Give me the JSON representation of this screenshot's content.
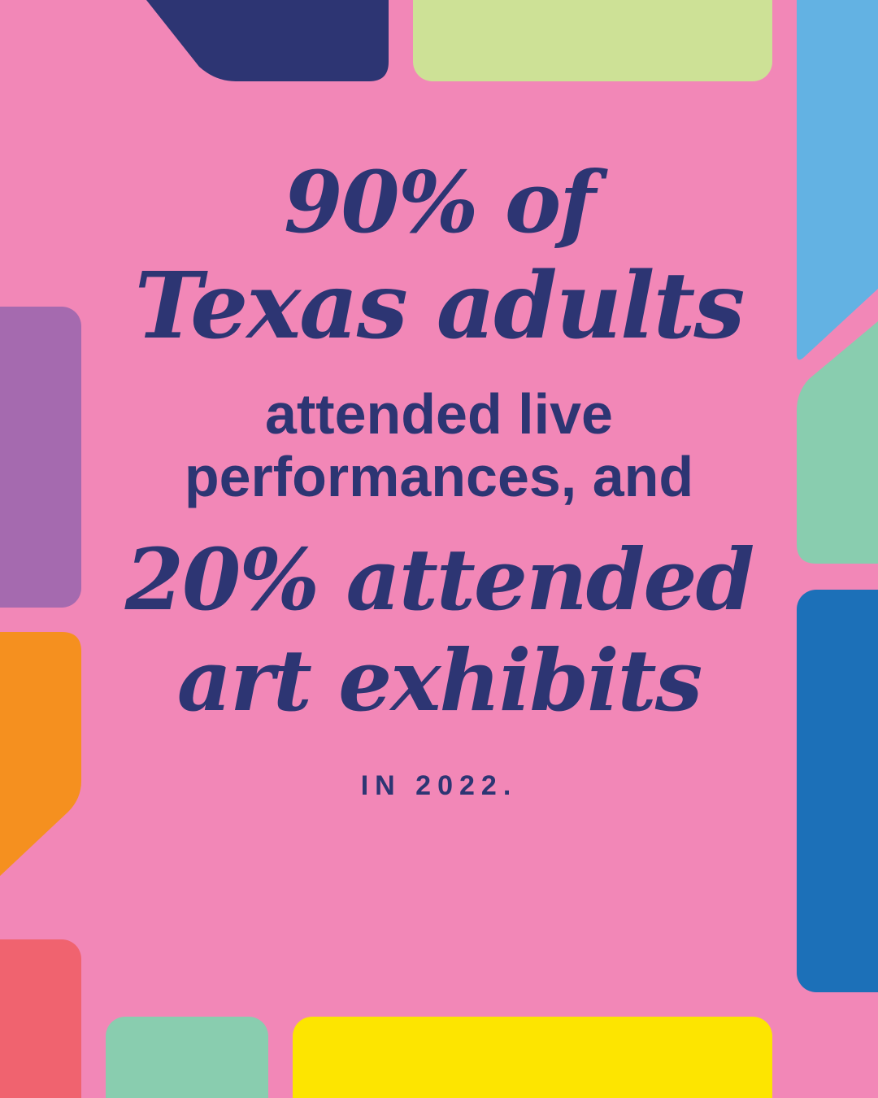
{
  "headline": {
    "line1": "90% of",
    "line2": "Texas adults",
    "line3": "attended live",
    "line4": "performances, and",
    "line5": "20% attended",
    "line6": "art exhibits",
    "footer": "IN 2022."
  },
  "colors": {
    "background": "#f287b7",
    "text": "#2d3573",
    "navy": "#2d3573",
    "lime": "#cde196",
    "sky_blue": "#63b2e3",
    "mint": "#89cdaf",
    "purple": "#a56aaf",
    "orange": "#f5901f",
    "coral": "#f0636f",
    "royal_blue": "#1c70b8",
    "yellow": "#fde500"
  }
}
